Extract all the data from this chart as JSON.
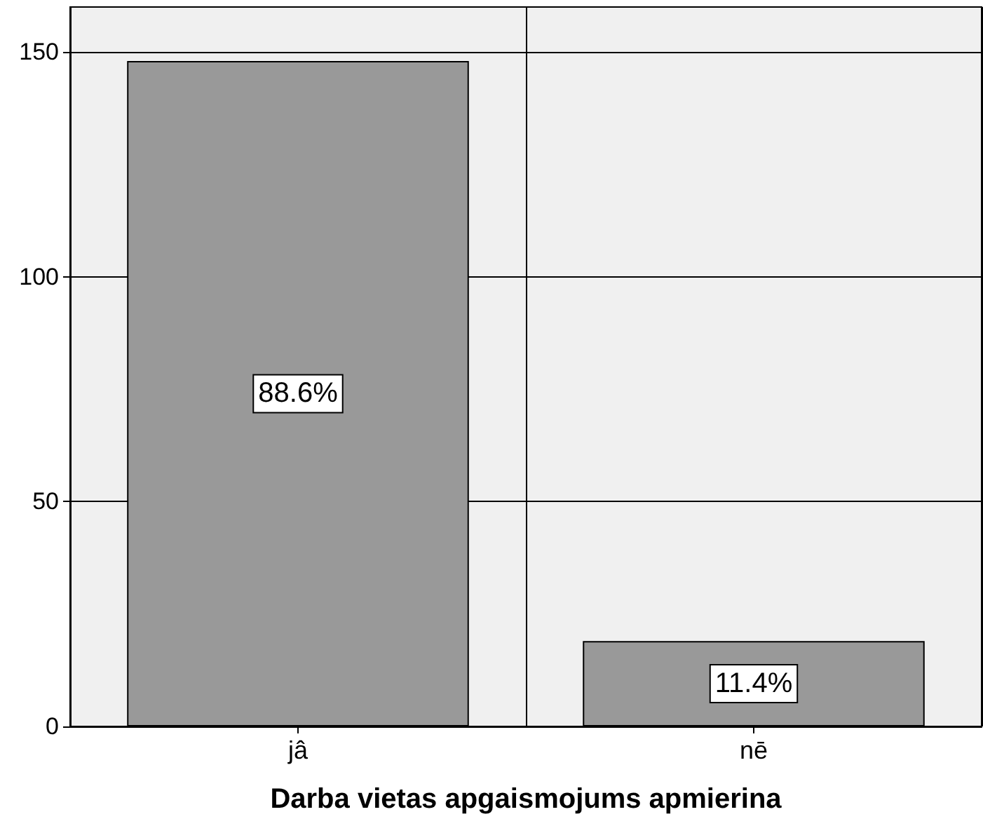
{
  "chart_data": {
    "type": "bar",
    "xlabel": "Darba vietas apgaismojums apmierina",
    "categories": [
      "jâ",
      "nē"
    ],
    "values": [
      148,
      19
    ],
    "color": "#999999",
    "annotations": [
      "88.6%",
      "11.4%"
    ],
    "ylim": [
      0,
      160
    ],
    "yticks": [
      0,
      50,
      100,
      150
    ],
    "grid": true
  }
}
